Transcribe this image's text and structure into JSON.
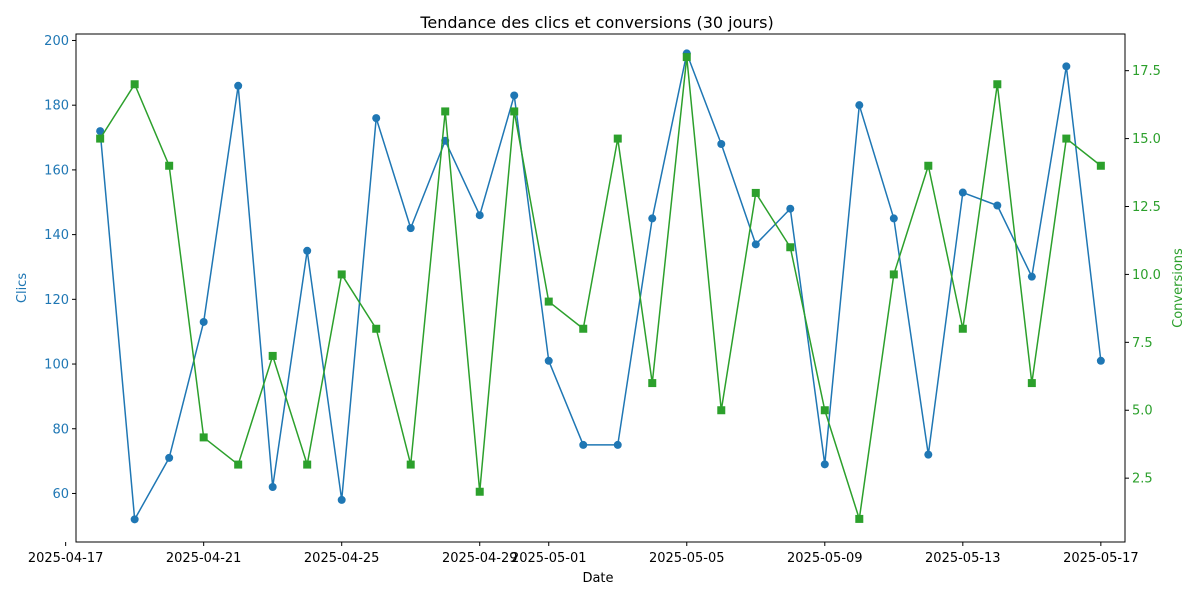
{
  "chart_data": {
    "type": "line",
    "title": "Tendance des clics et conversions (30 jours)",
    "xlabel": "Date",
    "x": [
      "2025-04-18",
      "2025-04-19",
      "2025-04-20",
      "2025-04-21",
      "2025-04-22",
      "2025-04-23",
      "2025-04-24",
      "2025-04-25",
      "2025-04-26",
      "2025-04-27",
      "2025-04-28",
      "2025-04-29",
      "2025-04-30",
      "2025-05-01",
      "2025-05-02",
      "2025-05-03",
      "2025-05-04",
      "2025-05-05",
      "2025-05-06",
      "2025-05-07",
      "2025-05-08",
      "2025-05-09",
      "2025-05-10",
      "2025-05-11",
      "2025-05-12",
      "2025-05-13",
      "2025-05-14",
      "2025-05-15",
      "2025-05-16",
      "2025-05-17"
    ],
    "xlim": [
      "2025-04-17T07:12",
      "2025-05-17T16:48"
    ],
    "x_ticks": [
      "2025-04-17",
      "2025-04-21",
      "2025-04-25",
      "2025-04-29",
      "2025-05-01",
      "2025-05-05",
      "2025-05-09",
      "2025-05-13",
      "2025-05-17"
    ],
    "grid": false,
    "legend": "none",
    "series": [
      {
        "axis": "left",
        "ylabel": "Clics",
        "color": "#1f77b4",
        "marker": "circle",
        "ylim": [
          45,
          202
        ],
        "y_ticks": [
          60,
          80,
          100,
          120,
          140,
          160,
          180,
          200
        ],
        "y_tick_labels": [
          "60",
          "80",
          "100",
          "120",
          "140",
          "160",
          "180",
          "200"
        ],
        "values": [
          172,
          52,
          71,
          113,
          186,
          62,
          135,
          58,
          176,
          142,
          169,
          146,
          183,
          101,
          75,
          75,
          145,
          196,
          168,
          137,
          148,
          69,
          180,
          145,
          72,
          153,
          149,
          127,
          192,
          101
        ]
      },
      {
        "axis": "right",
        "ylabel": "Conversions",
        "color": "#2ca02c",
        "marker": "square",
        "ylim": [
          0.15,
          18.85
        ],
        "y_ticks": [
          2.5,
          5.0,
          7.5,
          10.0,
          12.5,
          15.0,
          17.5
        ],
        "y_tick_labels": [
          "2.5",
          "5.0",
          "7.5",
          "10.0",
          "12.5",
          "15.0",
          "17.5"
        ],
        "values": [
          15,
          17,
          14,
          4,
          3,
          7,
          3,
          10,
          8,
          3,
          16,
          2,
          16,
          9,
          8,
          15,
          6,
          18,
          5,
          13,
          11,
          5,
          1,
          10,
          14,
          8,
          17,
          6,
          15,
          14
        ]
      }
    ]
  }
}
